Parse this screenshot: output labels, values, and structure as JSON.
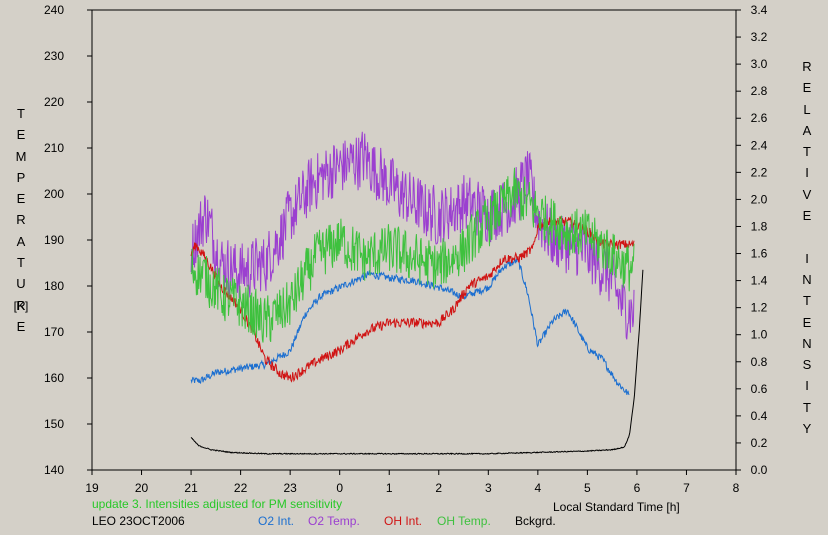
{
  "chart_data": {
    "type": "line",
    "xlabel": "Local Standard Time [h]",
    "y_left": {
      "label": "TEMPERATURE",
      "unit": "[K]",
      "range": [
        140,
        240
      ],
      "ticks": [
        "140",
        "150",
        "160",
        "170",
        "180",
        "190",
        "200",
        "210",
        "220",
        "230",
        "240"
      ]
    },
    "y_right": {
      "label": "RELATIVE INTENSITY",
      "range": [
        0.0,
        3.4
      ],
      "ticks": [
        "0.0",
        "0.2",
        "0.4",
        "0.6",
        "0.8",
        "1.0",
        "1.2",
        "1.4",
        "1.6",
        "1.8",
        "2.0",
        "2.2",
        "2.4",
        "2.6",
        "2.8",
        "3.0",
        "3.2",
        "3.4"
      ]
    },
    "x_axis": {
      "range_hours": [
        19,
        32
      ],
      "tick_labels": [
        "19",
        "20",
        "21",
        "22",
        "23",
        "0",
        "1",
        "2",
        "3",
        "4",
        "5",
        "6",
        "7",
        "8"
      ]
    },
    "series": [
      {
        "name": "O2 Int.",
        "color": "#1c6fd0",
        "axis": "right",
        "noise": 0.03,
        "x": [
          21.0,
          21.2,
          21.5,
          22.0,
          22.5,
          23.0,
          23.3,
          23.6,
          24.0,
          24.3,
          24.6,
          25.0,
          25.5,
          26.0,
          26.5,
          27.0,
          27.3,
          27.6,
          27.8,
          28.0,
          28.3,
          28.6,
          29.0,
          29.3,
          29.6,
          29.85
        ],
        "y": [
          0.66,
          0.66,
          0.72,
          0.75,
          0.78,
          0.88,
          1.15,
          1.28,
          1.35,
          1.4,
          1.45,
          1.42,
          1.4,
          1.35,
          1.28,
          1.35,
          1.5,
          1.55,
          1.3,
          0.92,
          1.1,
          1.18,
          0.9,
          0.82,
          0.65,
          0.55
        ]
      },
      {
        "name": "O2 Temp.",
        "color": "#9b3fd0",
        "axis": "left",
        "noise": 7,
        "x": [
          21.0,
          21.3,
          21.6,
          22.0,
          22.5,
          23.0,
          23.5,
          24.0,
          24.5,
          25.0,
          25.5,
          26.0,
          26.5,
          27.0,
          27.5,
          27.8,
          28.0,
          28.3,
          28.6,
          29.0,
          29.4,
          29.7,
          29.95
        ],
        "y": [
          188,
          196,
          185,
          183,
          185,
          195,
          203,
          206,
          208,
          202,
          198,
          195,
          198,
          196,
          198,
          204,
          195,
          190,
          189,
          187,
          183,
          176,
          174
        ]
      },
      {
        "name": "OH Int.",
        "color": "#d01414",
        "axis": "left",
        "noise": 1.2,
        "x": [
          21.0,
          21.1,
          21.3,
          21.6,
          22.0,
          22.3,
          22.5,
          22.8,
          23.0,
          23.3,
          23.6,
          24.0,
          24.5,
          25.0,
          25.5,
          26.0,
          26.3,
          26.6,
          27.0,
          27.3,
          27.6,
          27.9,
          28.0,
          28.2,
          28.6,
          29.0,
          29.3,
          29.6,
          29.95
        ],
        "y": [
          187,
          189,
          186,
          180,
          175,
          169,
          164,
          161,
          160,
          162,
          164,
          166,
          170,
          172,
          172,
          172,
          175,
          180,
          182,
          186,
          186,
          188,
          193,
          194,
          194,
          192,
          189,
          189,
          189
        ]
      },
      {
        "name": "OH Temp.",
        "color": "#3ec13e",
        "axis": "left",
        "noise": 6,
        "x": [
          21.0,
          21.3,
          21.6,
          22.0,
          22.5,
          23.0,
          23.5,
          24.0,
          24.5,
          25.0,
          25.5,
          26.0,
          26.5,
          27.0,
          27.5,
          27.8,
          28.0,
          28.3,
          28.6,
          29.0,
          29.4,
          29.8,
          29.95
        ],
        "y": [
          184,
          182,
          178,
          176,
          172,
          176,
          186,
          190,
          186,
          188,
          186,
          184,
          188,
          194,
          200,
          198,
          196,
          194,
          192,
          191,
          188,
          184,
          184
        ]
      },
      {
        "name": "Bckgrd.",
        "color": "#000000",
        "axis": "right",
        "noise": 0.004,
        "x": [
          21.0,
          21.15,
          21.4,
          21.8,
          22.5,
          23.0,
          24.0,
          25.0,
          26.0,
          27.0,
          28.0,
          29.0,
          29.5,
          29.75,
          29.85,
          29.95,
          30.05,
          30.12
        ],
        "y": [
          0.24,
          0.18,
          0.15,
          0.13,
          0.12,
          0.12,
          0.12,
          0.12,
          0.12,
          0.12,
          0.13,
          0.14,
          0.15,
          0.17,
          0.26,
          0.55,
          1.05,
          1.48
        ]
      }
    ],
    "annotation": "update 3. Intensities adjusted for PM sensitivity",
    "station": "LEO 23OCT2006"
  }
}
